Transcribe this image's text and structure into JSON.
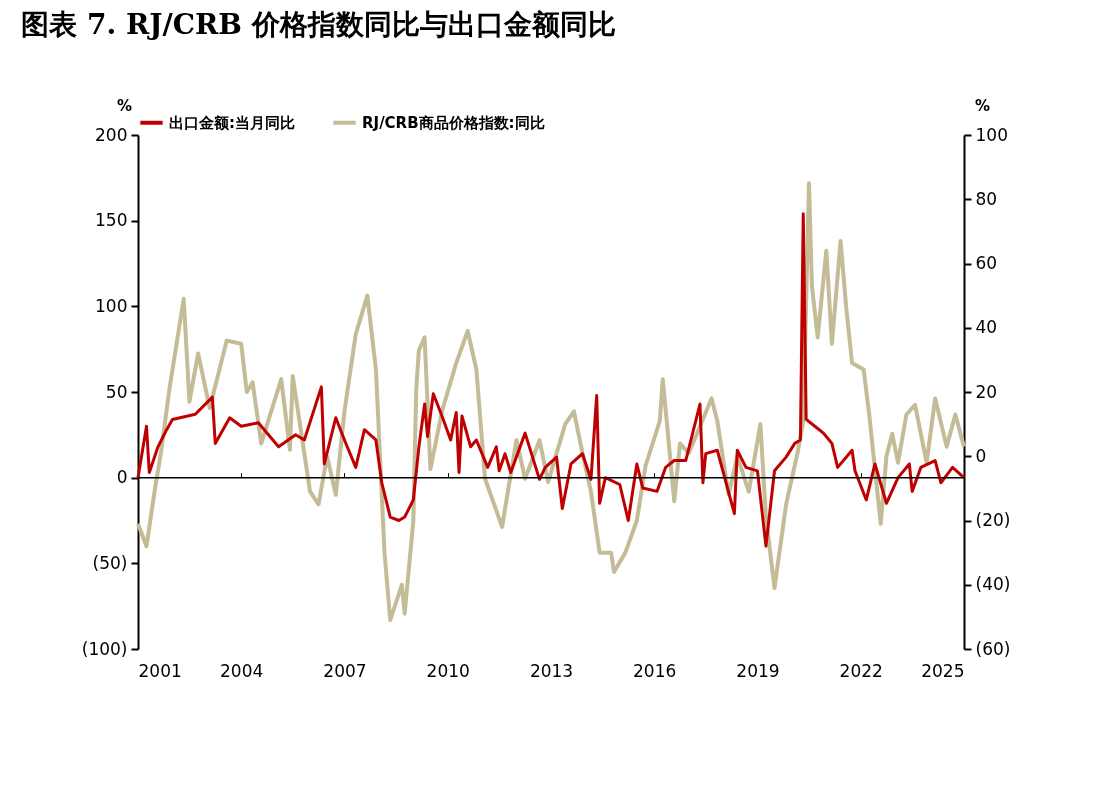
{
  "chart_data": {
    "type": "line",
    "title": "图表  7. RJ/CRB 价格指数同比与出口金额同比",
    "ylabel": "%",
    "y2label": "%",
    "xlim": [
      "2001",
      "2025"
    ],
    "xticks": [
      "2001",
      "2004",
      "2007",
      "2010",
      "2013",
      "2016",
      "2019",
      "2022",
      "2025"
    ],
    "ylim": [
      -100,
      200
    ],
    "yticks": [
      {
        "value": -100,
        "label": "(100)"
      },
      {
        "value": -50,
        "label": "(50)"
      },
      0,
      50,
      100,
      150,
      200
    ],
    "y2lim": [
      -60,
      100
    ],
    "y2ticks": [
      {
        "value": -60,
        "label": "(60)"
      },
      {
        "value": -40,
        "label": "(40)"
      },
      {
        "value": -20,
        "label": "(20)"
      },
      0,
      20,
      40,
      60,
      80,
      100
    ],
    "legend": "top",
    "grid": false,
    "ref_lines": [
      {
        "axis": "y",
        "value": 0,
        "color": "#000000"
      }
    ],
    "line_style": "solid",
    "series": [
      {
        "name": "出口金额:当月同比",
        "color": "#c00000",
        "axis": "y",
        "x": [
          "2001-01",
          "2001-04",
          "2001-05",
          "2001-08",
          "2001-11",
          "2002-01",
          "2002-09",
          "2003-03",
          "2003-04",
          "2003-09",
          "2004-01",
          "2004-07",
          "2005-02",
          "2005-08",
          "2005-11",
          "2006-05",
          "2006-06",
          "2006-10",
          "2007-01",
          "2007-05",
          "2007-08",
          "2007-12",
          "2008-02",
          "2008-05",
          "2008-08",
          "2008-10",
          "2009-01",
          "2009-03",
          "2009-05",
          "2009-06",
          "2009-08",
          "2009-11",
          "2010-02",
          "2010-04",
          "2010-05",
          "2010-06",
          "2010-09",
          "2010-11",
          "2011-03",
          "2011-06",
          "2011-07",
          "2011-09",
          "2011-11",
          "2012-04",
          "2012-09",
          "2012-11",
          "2013-03",
          "2013-05",
          "2013-08",
          "2013-12",
          "2014-03",
          "2014-05",
          "2014-06",
          "2014-08",
          "2015-01",
          "2015-04",
          "2015-07",
          "2015-09",
          "2016-02",
          "2016-05",
          "2016-08",
          "2016-12",
          "2017-05",
          "2017-06",
          "2017-07",
          "2017-11",
          "2018-05",
          "2018-06",
          "2018-09",
          "2019-01",
          "2019-04",
          "2019-07",
          "2019-11",
          "2020-02",
          "2020-04",
          "2020-05",
          "2020-06",
          "2020-09",
          "2020-12",
          "2021-03",
          "2021-05",
          "2021-10",
          "2021-11",
          "2022-03",
          "2022-06",
          "2022-10",
          "2023-02",
          "2023-06",
          "2023-07",
          "2023-10",
          "2024-03",
          "2024-05",
          "2024-09",
          "2025-01"
        ],
        "values": [
          0,
          30,
          3,
          18,
          28,
          34,
          37,
          47,
          20,
          35,
          30,
          32,
          18,
          25,
          22,
          53,
          8,
          35,
          22,
          6,
          28,
          22,
          -3,
          -23,
          -25,
          -23,
          -13,
          18,
          43,
          24,
          49,
          36,
          22,
          38,
          3,
          36,
          18,
          22,
          6,
          18,
          4,
          14,
          3,
          26,
          -1,
          6,
          12,
          -18,
          8,
          14,
          -1,
          48,
          -15,
          0,
          -4,
          -25,
          8,
          -6,
          -8,
          6,
          10,
          10,
          43,
          -3,
          14,
          16,
          -21,
          16,
          6,
          4,
          -40,
          4,
          12,
          20,
          22,
          154,
          34,
          30,
          26,
          20,
          6,
          16,
          4,
          -13,
          8,
          -15,
          0,
          8,
          -8,
          6,
          10,
          -3,
          6,
          0
        ]
      },
      {
        "name": "RJ/CRB商品价格指数:同比",
        "color": "#c4bc96",
        "axis": "y2",
        "x": [
          "2001-01",
          "2001-04",
          "2001-07",
          "2001-09",
          "2001-12",
          "2002-05",
          "2002-07",
          "2002-10",
          "2003-02",
          "2003-08",
          "2004-01",
          "2004-03",
          "2004-05",
          "2004-08",
          "2005-03",
          "2005-06",
          "2005-07",
          "2006-01",
          "2006-04",
          "2006-07",
          "2006-10",
          "2007-01",
          "2007-05",
          "2007-09",
          "2007-12",
          "2008-03",
          "2008-05",
          "2008-09",
          "2008-10",
          "2009-01",
          "2009-02",
          "2009-03",
          "2009-05",
          "2009-07",
          "2009-11",
          "2010-04",
          "2010-08",
          "2010-11",
          "2011-02",
          "2011-08",
          "2011-10",
          "2012-01",
          "2012-04",
          "2012-09",
          "2012-12",
          "2013-06",
          "2013-09",
          "2013-12",
          "2014-03",
          "2014-06",
          "2014-10",
          "2014-11",
          "2015-03",
          "2015-07",
          "2015-10",
          "2016-03",
          "2016-04",
          "2016-08",
          "2016-10",
          "2017-01",
          "2017-03",
          "2017-09",
          "2017-11",
          "2018-03",
          "2018-06",
          "2018-10",
          "2019-02",
          "2019-04",
          "2019-07",
          "2019-11",
          "2020-03",
          "2020-05",
          "2020-07",
          "2020-08",
          "2020-10",
          "2021-01",
          "2021-03",
          "2021-06",
          "2021-08",
          "2021-10",
          "2022-02",
          "2022-04",
          "2022-08",
          "2022-10",
          "2022-12",
          "2023-02",
          "2023-05",
          "2023-08",
          "2023-12",
          "2024-03",
          "2024-07",
          "2024-10",
          "2025-01"
        ],
        "values": [
          -21,
          -28,
          -10,
          1,
          21,
          49,
          17,
          32,
          15,
          36,
          35,
          20,
          23,
          4,
          24,
          2,
          25,
          -11,
          -15,
          0,
          -12,
          14,
          38,
          50,
          27,
          -30,
          -51,
          -40,
          -49,
          -20,
          21,
          33,
          37,
          -4,
          14,
          29,
          39,
          27,
          -7,
          -22,
          -11,
          5,
          -7,
          5,
          -8,
          10,
          14,
          1,
          -11,
          -30,
          -30,
          -36,
          -30,
          -20,
          -3,
          11,
          24,
          -14,
          4,
          1,
          5,
          18,
          11,
          -12,
          0,
          -11,
          10,
          -19,
          -41,
          -15,
          1,
          11,
          85,
          53,
          37,
          64,
          35,
          67,
          46,
          29,
          27,
          13,
          -21,
          0,
          7,
          -2,
          13,
          16,
          -2,
          18,
          3,
          13,
          3
        ]
      }
    ]
  }
}
